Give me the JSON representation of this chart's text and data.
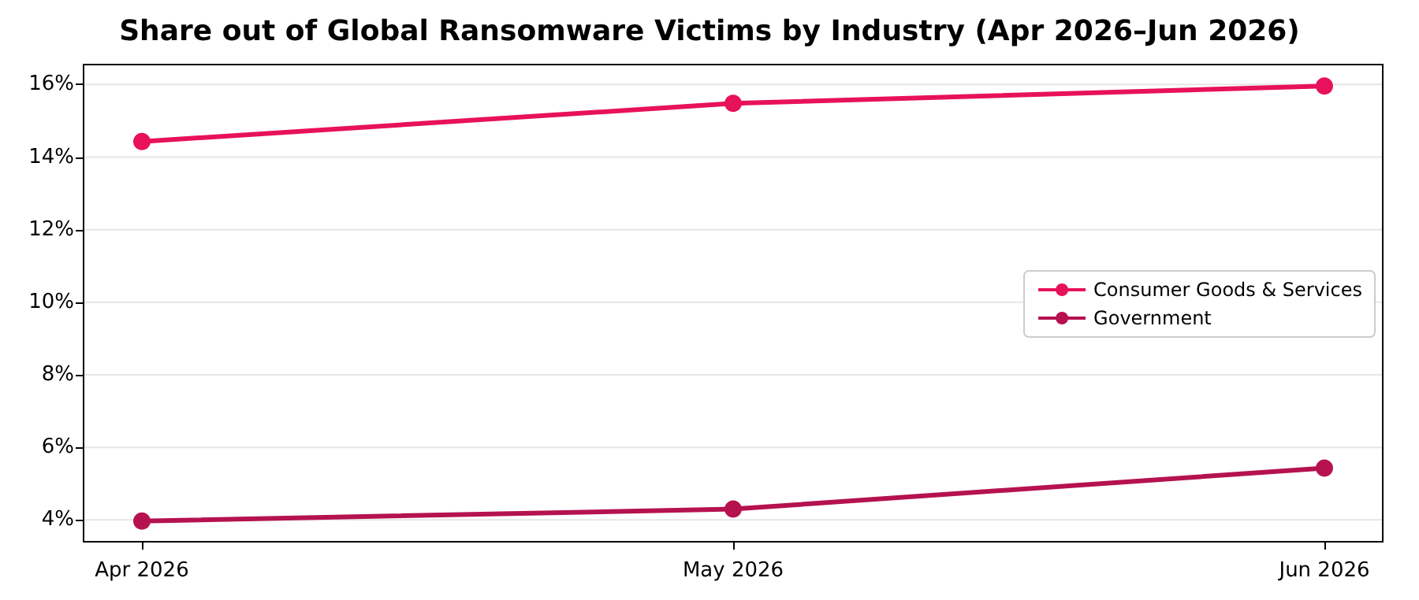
{
  "chart_data": {
    "type": "line",
    "title": "Share out of Global Ransomware Victims by Industry (Apr 2026–Jun 2026)",
    "categories": [
      "Apr 2026",
      "May 2026",
      "Jun 2026"
    ],
    "series": [
      {
        "name": "Consumer Goods & Services",
        "color": "#e8115b",
        "values": [
          14.43,
          15.48,
          15.96
        ]
      },
      {
        "name": "Government",
        "color": "#b5124f",
        "values": [
          3.97,
          4.3,
          5.43
        ]
      }
    ],
    "ylim": [
      3.4,
      16.55
    ],
    "yticks": [
      {
        "value": 4,
        "label": "4%"
      },
      {
        "value": 6,
        "label": "6%"
      },
      {
        "value": 8,
        "label": "8%"
      },
      {
        "value": 10,
        "label": "10%"
      },
      {
        "value": 12,
        "label": "12%"
      },
      {
        "value": 14,
        "label": "14%"
      },
      {
        "value": 16,
        "label": "16%"
      }
    ],
    "grid": "y",
    "legend": "right",
    "marker": "circle",
    "line_style": "solid"
  }
}
